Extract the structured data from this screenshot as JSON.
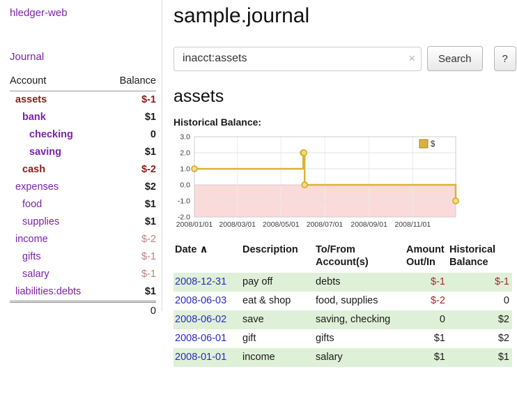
{
  "colors": {
    "purple": "#7b22ad",
    "neg": "#8b1c1c",
    "neg_muted": "#bc8080",
    "row_green": "#dff0d8",
    "link_blue": "#2a2ac4",
    "amount_neg": "#a52a2a"
  },
  "app": {
    "title": "hledger-web"
  },
  "sidebar": {
    "journal_link": "Journal",
    "accounts": {
      "account_header": "Account",
      "balance_header": "Balance",
      "rows": [
        {
          "name": "assets",
          "level": 0,
          "strong": true,
          "name_neg": true,
          "balance": "$-1",
          "bal_neg": true,
          "bal_muted": false
        },
        {
          "name": "bank",
          "level": 1,
          "strong": true,
          "name_neg": false,
          "balance": "$1",
          "bal_neg": false,
          "bal_muted": false
        },
        {
          "name": "checking",
          "level": 2,
          "strong": true,
          "name_neg": false,
          "balance": "0",
          "bal_neg": false,
          "bal_muted": false
        },
        {
          "name": "saving",
          "level": 2,
          "strong": true,
          "name_neg": false,
          "balance": "$1",
          "bal_neg": false,
          "bal_muted": false
        },
        {
          "name": "cash",
          "level": 1,
          "strong": true,
          "name_neg": true,
          "balance": "$-2",
          "bal_neg": true,
          "bal_muted": false
        },
        {
          "name": "expenses",
          "level": 0,
          "strong": false,
          "name_neg": false,
          "balance": "$2",
          "bal_neg": false,
          "bal_muted": false
        },
        {
          "name": "food",
          "level": 1,
          "strong": false,
          "name_neg": false,
          "balance": "$1",
          "bal_neg": false,
          "bal_muted": false
        },
        {
          "name": "supplies",
          "level": 1,
          "strong": false,
          "name_neg": false,
          "balance": "$1",
          "bal_neg": false,
          "bal_muted": false
        },
        {
          "name": "income",
          "level": 0,
          "strong": false,
          "name_neg": false,
          "balance": "$-2",
          "bal_neg": true,
          "bal_muted": true
        },
        {
          "name": "gifts",
          "level": 1,
          "strong": false,
          "name_neg": false,
          "balance": "$-1",
          "bal_neg": true,
          "bal_muted": true
        },
        {
          "name": "salary",
          "level": 1,
          "strong": false,
          "name_neg": false,
          "balance": "$-1",
          "bal_neg": true,
          "bal_muted": true
        },
        {
          "name": "liabilities:debts",
          "level": 0,
          "strong": false,
          "name_neg": false,
          "balance": "$1",
          "bal_neg": false,
          "bal_muted": false
        }
      ],
      "total": "0"
    }
  },
  "main": {
    "title": "sample.journal",
    "search": {
      "value": "inacct:assets",
      "clear_icon": "×",
      "button_label": "Search",
      "help_label": "?"
    },
    "section_title": "assets",
    "chart_label": "Historical Balance:"
  },
  "chart_data": {
    "type": "line",
    "title": "Historical Balance",
    "step": true,
    "grid": true,
    "legend": {
      "position": "top-right",
      "label": "$"
    },
    "xlim": [
      0,
      365
    ],
    "ylim": [
      -2,
      3
    ],
    "yticks": [
      {
        "label": "3.0",
        "value": 3
      },
      {
        "label": "2.0",
        "value": 2
      },
      {
        "label": "1.0",
        "value": 1
      },
      {
        "label": "0.0",
        "value": 0
      },
      {
        "label": "-1.0",
        "value": -1
      },
      {
        "label": "-2.0",
        "value": -2
      }
    ],
    "xticks": [
      {
        "label": "2008/01/01",
        "day": 0
      },
      {
        "label": "2008/03/01",
        "day": 60
      },
      {
        "label": "2008/05/01",
        "day": 121
      },
      {
        "label": "2008/07/01",
        "day": 182
      },
      {
        "label": "2008/09/01",
        "day": 244
      },
      {
        "label": "2008/11/01",
        "day": 305
      }
    ],
    "negative_area_fill": "#fbdada",
    "series": [
      {
        "name": "$",
        "color": "#d9b23a",
        "marker_fill": "#f6df7f",
        "points": [
          {
            "date": "2008-01-01",
            "day": 0,
            "y": 1
          },
          {
            "date": "2008-06-01",
            "day": 152,
            "y": 2
          },
          {
            "date": "2008-06-02",
            "day": 153,
            "y": 2
          },
          {
            "date": "2008-06-03",
            "day": 154,
            "y": 0
          },
          {
            "date": "2008-12-31",
            "day": 365,
            "y": -1
          }
        ]
      }
    ]
  },
  "transactions": {
    "headers": {
      "date": "Date",
      "sort_icon": "∧",
      "description": "Description",
      "tofrom_line1": "To/From",
      "tofrom_line2": "Account(s)",
      "amount_line1": "Amount",
      "amount_line2": "Out/In",
      "balance_line1": "Historical",
      "balance_line2": "Balance"
    },
    "rows": [
      {
        "date": "2008-12-31",
        "description": "pay off",
        "accounts": "debts",
        "amount": "$-1",
        "amount_neg": true,
        "balance": "$-1",
        "balance_neg": true
      },
      {
        "date": "2008-06-03",
        "description": "eat & shop",
        "accounts": "food, supplies",
        "amount": "$-2",
        "amount_neg": true,
        "balance": "0",
        "balance_neg": false
      },
      {
        "date": "2008-06-02",
        "description": "save",
        "accounts": "saving, checking",
        "amount": "0",
        "amount_neg": false,
        "balance": "$2",
        "balance_neg": false
      },
      {
        "date": "2008-06-01",
        "description": "gift",
        "accounts": "gifts",
        "amount": "$1",
        "amount_neg": false,
        "balance": "$2",
        "balance_neg": false
      },
      {
        "date": "2008-01-01",
        "description": "income",
        "accounts": "salary",
        "amount": "$1",
        "amount_neg": false,
        "balance": "$1",
        "balance_neg": false
      }
    ]
  }
}
